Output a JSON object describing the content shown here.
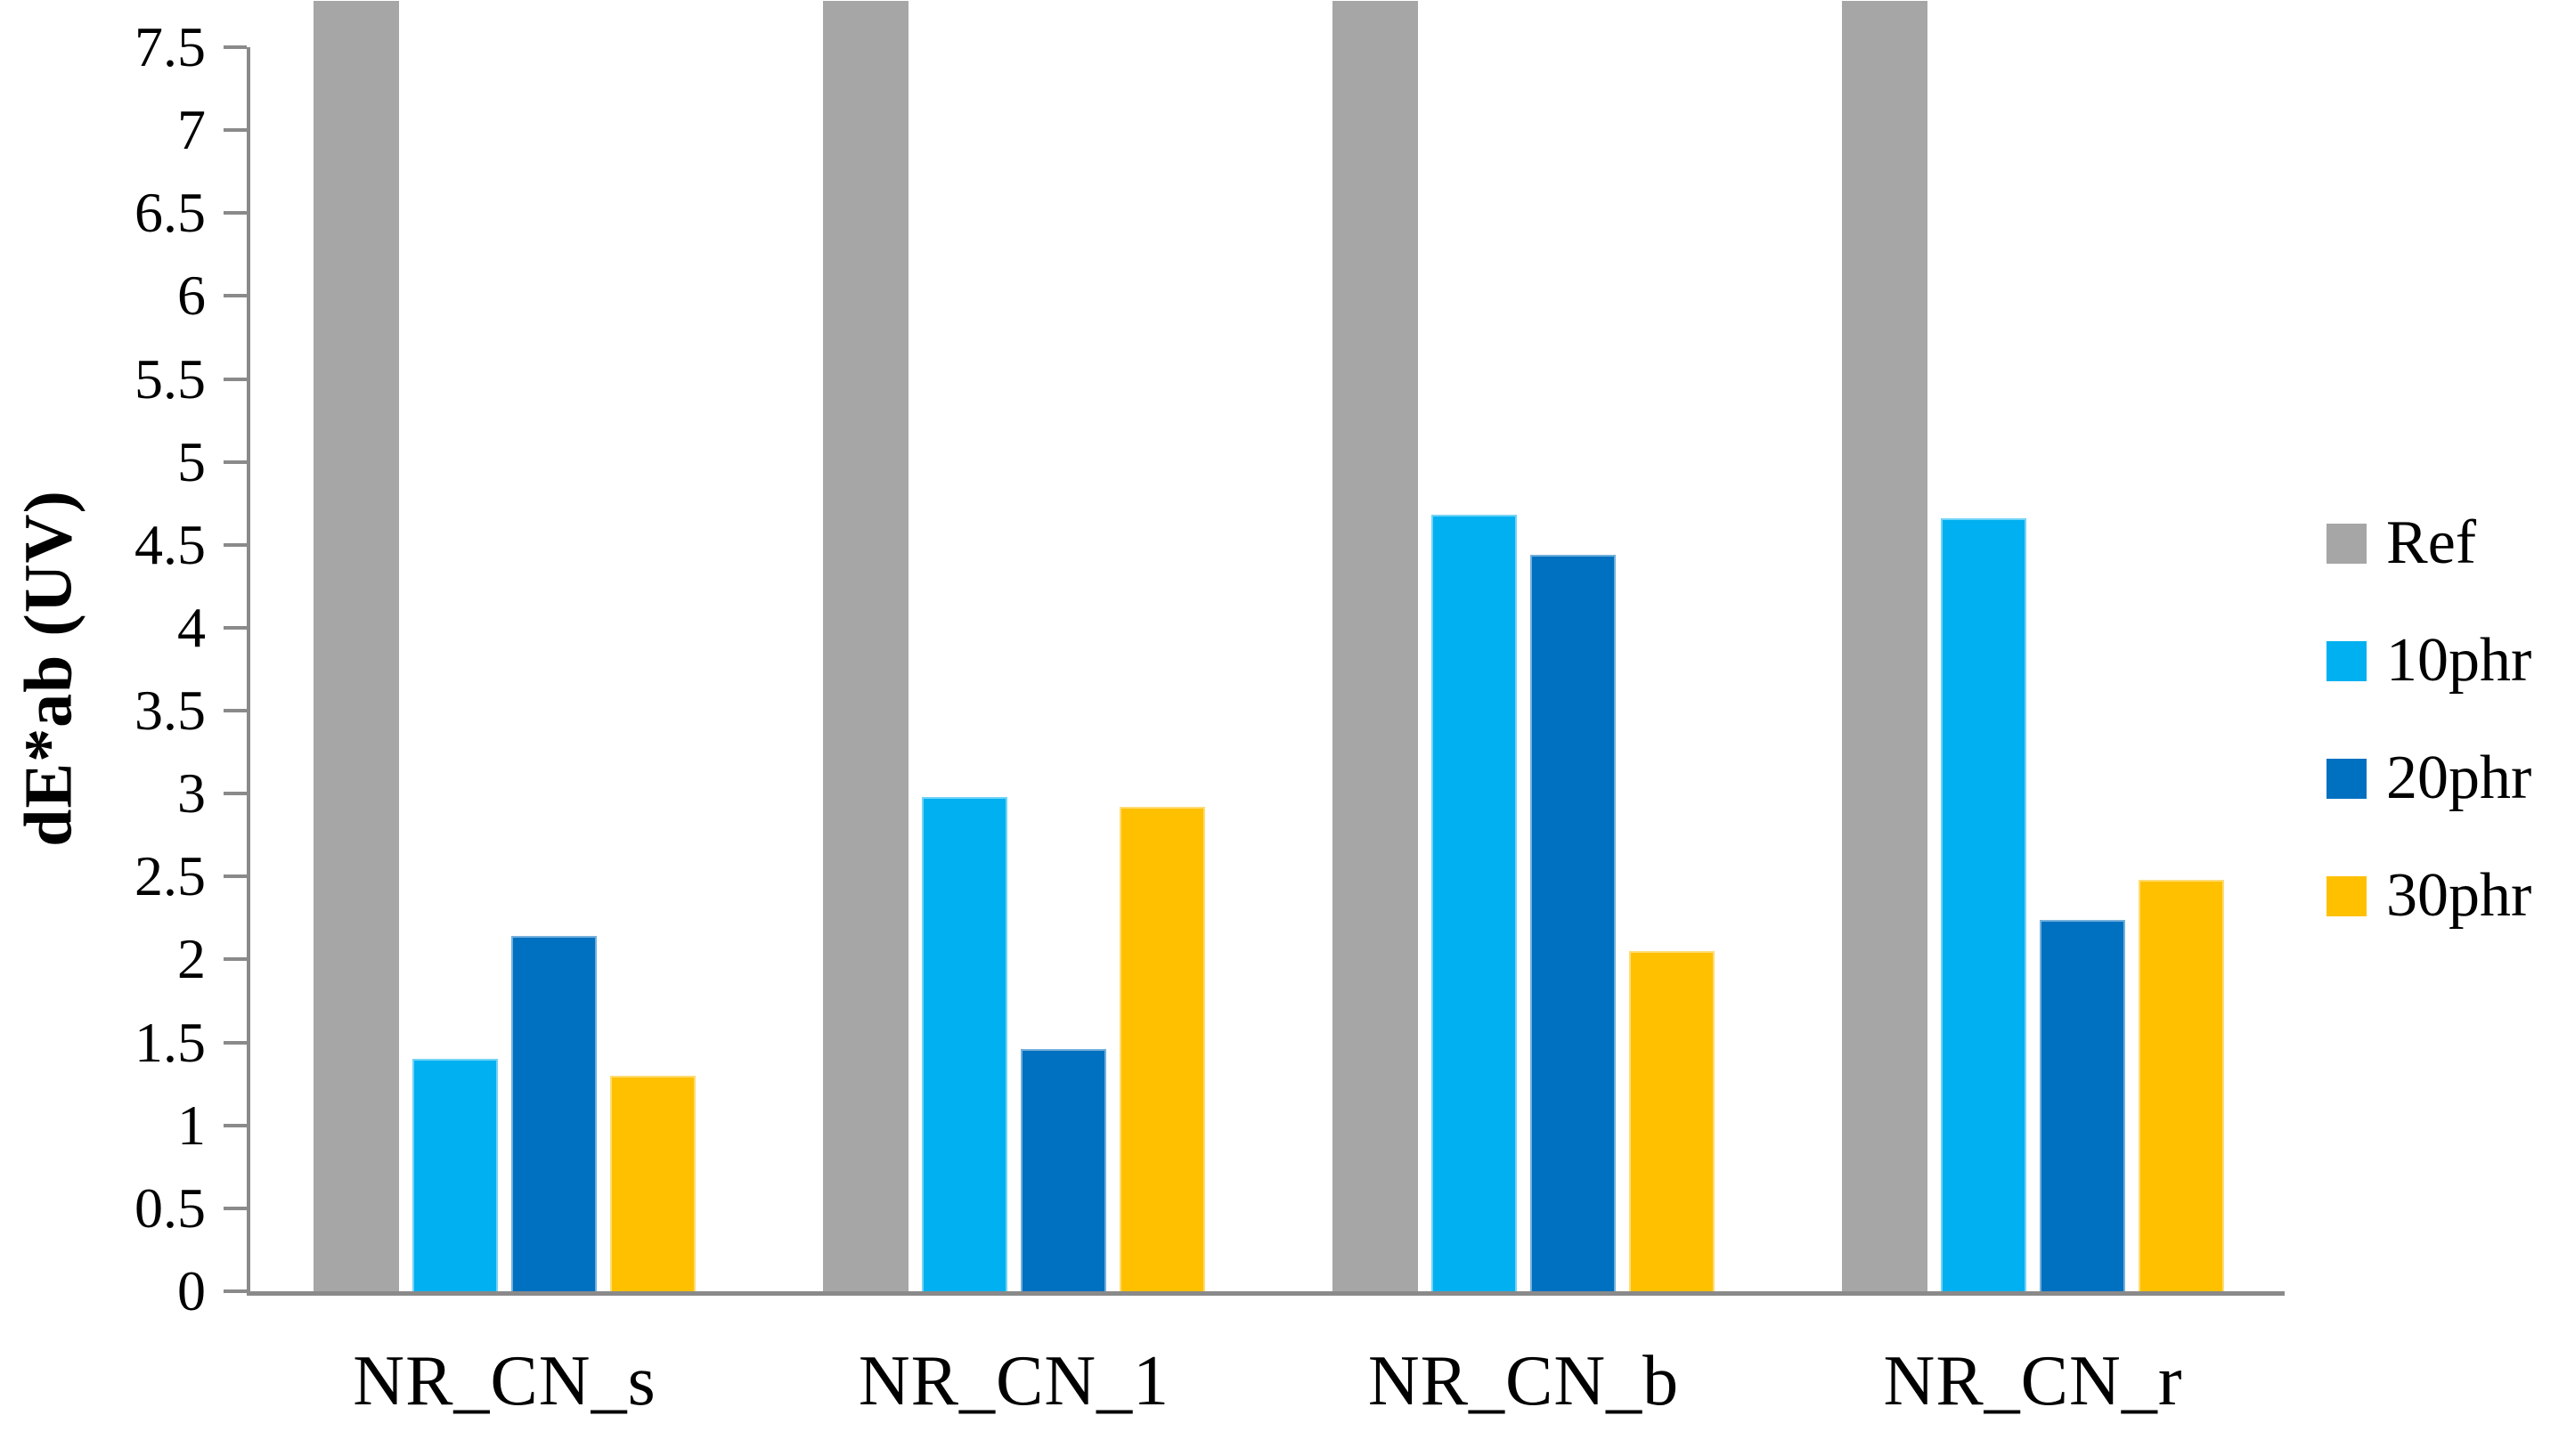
{
  "figure": {
    "y_axis_title": "dE*ab (UV)"
  },
  "chart_data": {
    "type": "bar",
    "title": "",
    "xlabel": "",
    "ylabel": "dE*ab (UV)",
    "categories": [
      "NR_CN_s",
      "NR_CN_1",
      "NR_CN_b",
      "NR_CN_r"
    ],
    "series": [
      {
        "name": "Ref",
        "color": "#A6A6A6",
        "values": [
          7.78,
          7.78,
          7.78,
          7.78
        ],
        "clipped_at_plot_top": true
      },
      {
        "name": "10phr",
        "color": "#00B0F0",
        "values": [
          1.4,
          2.98,
          4.68,
          4.66
        ]
      },
      {
        "name": "20phr",
        "color": "#0070C0",
        "values": [
          2.14,
          1.46,
          4.44,
          2.24
        ]
      },
      {
        "name": "30phr",
        "color": "#FFC000",
        "values": [
          1.3,
          2.92,
          2.05,
          2.48
        ]
      }
    ],
    "ylim": [
      0,
      7.5
    ],
    "ytick_step": 0.5,
    "ytick_labels": [
      "0",
      "0.5",
      "1",
      "1.5",
      "2",
      "2.5",
      "3",
      "3.5",
      "4",
      "4.5",
      "5",
      "5.5",
      "6",
      "6.5",
      "7",
      "7.5"
    ],
    "grid": false,
    "axis_color": "#8A8A8A",
    "legend": {
      "position": "right",
      "entries": [
        "Ref",
        "10phr",
        "20phr",
        "30phr"
      ]
    }
  }
}
